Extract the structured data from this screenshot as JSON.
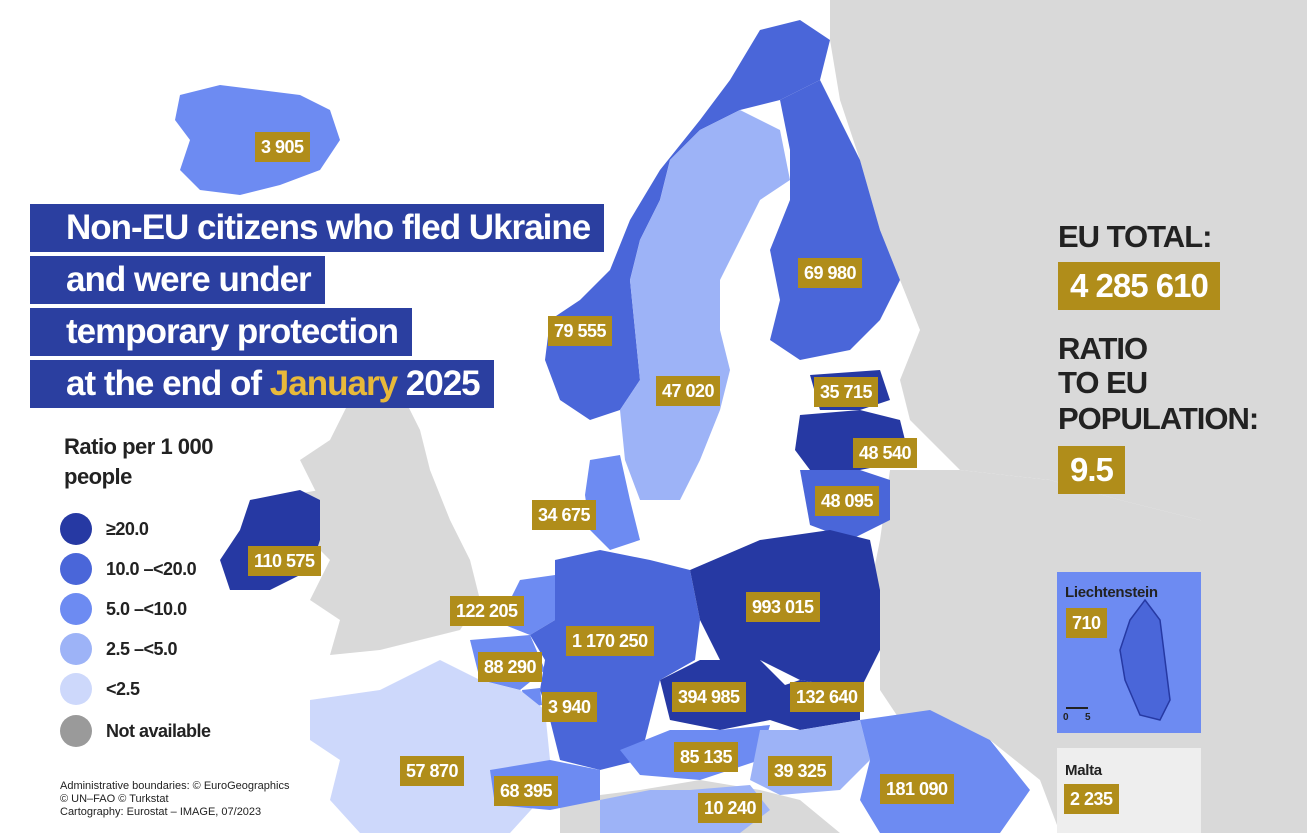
{
  "title": {
    "line1": "Non-EU citizens who fled Ukraine",
    "line2": "and were under",
    "line3": "temporary protection",
    "line4_prefix": "at the end of",
    "line4_month": "January",
    "line4_year": "2025"
  },
  "legend": {
    "title": "Ratio per 1 000 people",
    "classes": [
      {
        "label": "≥20.0",
        "color": "#2639a3"
      },
      {
        "label": "10.0 –<20.0",
        "color": "#4a66d9"
      },
      {
        "label": "5.0 –<10.0",
        "color": "#6d8bf2"
      },
      {
        "label": "2.5 –<5.0",
        "color": "#9db3f7"
      },
      {
        "label": "<2.5",
        "color": "#cdd8fb"
      },
      {
        "label": "Not available",
        "color": "#9a9a9a"
      }
    ]
  },
  "countries": [
    {
      "name": "Iceland",
      "value": "3 905",
      "class": "5.0 –<10.0"
    },
    {
      "name": "Norway",
      "value": "79 555",
      "class": "10.0 –<20.0"
    },
    {
      "name": "Sweden",
      "value": "47 020",
      "class": "2.5 –<5.0"
    },
    {
      "name": "Finland",
      "value": "69 980",
      "class": "10.0 –<20.0"
    },
    {
      "name": "Estonia",
      "value": "35 715",
      "class": "≥20.0"
    },
    {
      "name": "Latvia",
      "value": "48 540",
      "class": "≥20.0"
    },
    {
      "name": "Lithuania",
      "value": "48 095",
      "class": "10.0 –<20.0"
    },
    {
      "name": "Denmark",
      "value": "34 675",
      "class": "5.0 –<10.0"
    },
    {
      "name": "Ireland",
      "value": "110 575",
      "class": "≥20.0"
    },
    {
      "name": "Netherlands",
      "value": "122 205",
      "class": "5.0 –<10.0"
    },
    {
      "name": "Belgium",
      "value": "88 290",
      "class": "5.0 –<10.0"
    },
    {
      "name": "Luxembourg",
      "value": "3 940",
      "class": "5.0 –<10.0"
    },
    {
      "name": "Germany",
      "value": "1 170 250",
      "class": "10.0 –<20.0"
    },
    {
      "name": "Poland",
      "value": "993 015",
      "class": "≥20.0"
    },
    {
      "name": "Czechia",
      "value": "394 985",
      "class": "≥20.0"
    },
    {
      "name": "Slovakia",
      "value": "132 640",
      "class": "≥20.0"
    },
    {
      "name": "Austria",
      "value": "85 135",
      "class": "5.0 –<10.0"
    },
    {
      "name": "Hungary",
      "value": "39 325",
      "class": "2.5 –<5.0"
    },
    {
      "name": "Romania",
      "value": "181 090",
      "class": "5.0 –<10.0"
    },
    {
      "name": "France",
      "value": "57 870",
      "class": "<2.5"
    },
    {
      "name": "Switzerland",
      "value": "68 395",
      "class": "5.0 –<10.0"
    },
    {
      "name": "Slovenia",
      "value": "10 240",
      "class": "2.5 –<5.0"
    }
  ],
  "eu_total": {
    "label": "EU TOTAL:",
    "value": "4 285 610"
  },
  "ratio": {
    "label_line1": "RATIO",
    "label_line2": "TO EU",
    "label_line3": "POPULATION:",
    "value": "9.5"
  },
  "insets": {
    "liechtenstein": {
      "name": "Liechtenstein",
      "value": "710",
      "scale_0": "0",
      "scale_5": "5"
    },
    "malta": {
      "name": "Malta",
      "value": "2 235"
    }
  },
  "credits": {
    "line1": "Administrative boundaries: © EuroGeographics",
    "line2": "© UN–FAO © Turkstat",
    "line3": "Cartography: Eurostat – IMAGE, 07/2023"
  },
  "colors": {
    "title_band": "#2b3fa0",
    "highlight": "#e8b93a",
    "label_box": "#b08d1a",
    "non_eu_land": "#d9d9d9",
    "sea": "#ffffff"
  }
}
